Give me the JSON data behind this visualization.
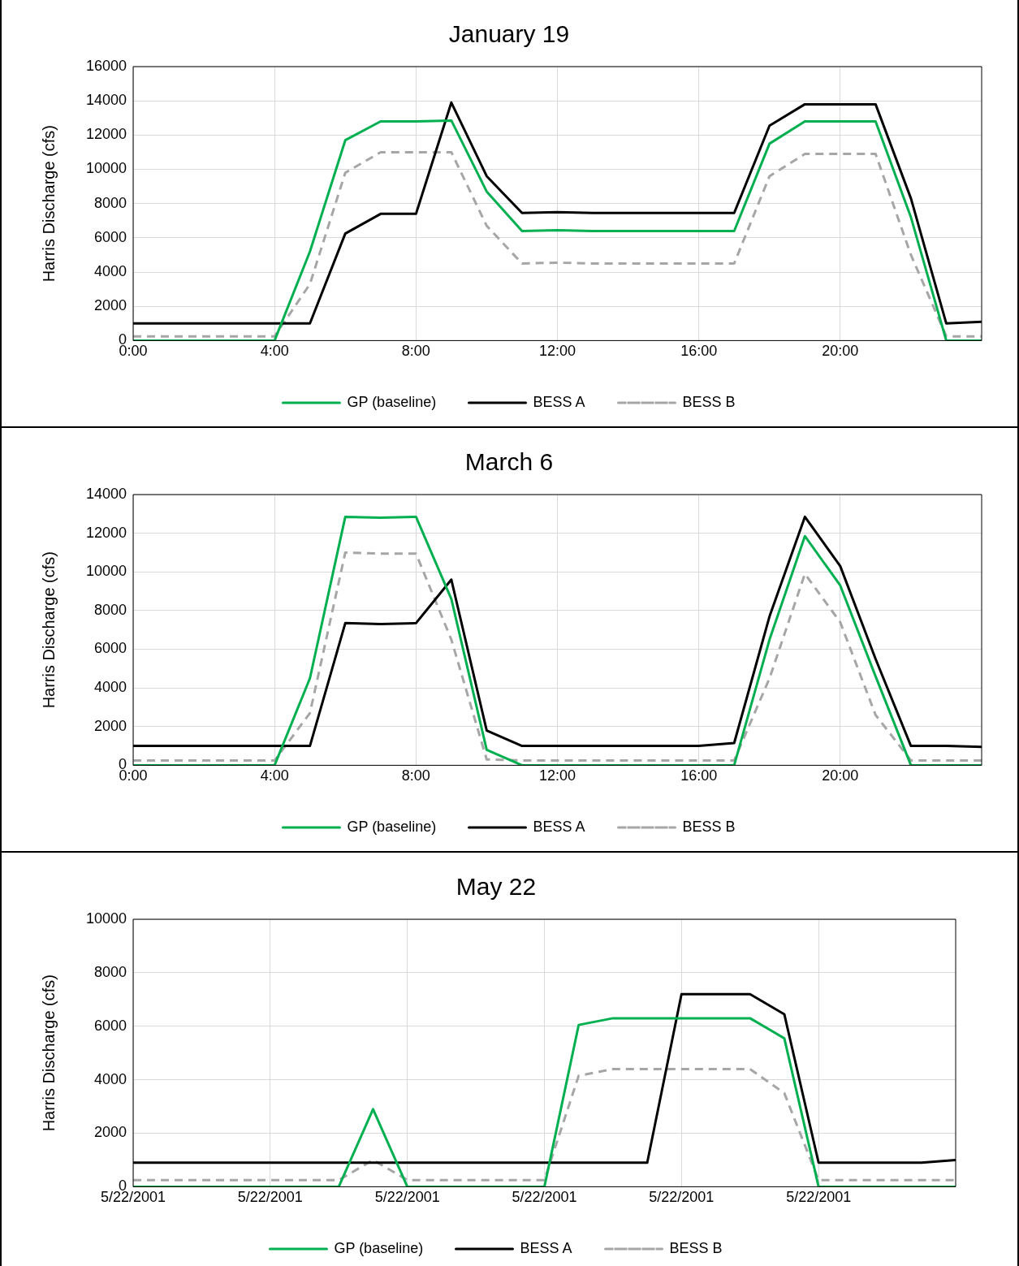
{
  "chart_data": [
    {
      "type": "line",
      "title": "January 19",
      "ylabel": "Harris Discharge (cfs)",
      "x": [
        0,
        1,
        2,
        3,
        4,
        5,
        6,
        7,
        8,
        9,
        10,
        11,
        12,
        13,
        14,
        15,
        16,
        17,
        18,
        19,
        20,
        21,
        22,
        23,
        24
      ],
      "xlim": [
        0,
        24
      ],
      "xticks": [
        {
          "value": 0,
          "label": "0:00"
        },
        {
          "value": 4,
          "label": "4:00"
        },
        {
          "value": 8,
          "label": "8:00"
        },
        {
          "value": 12,
          "label": "12:00"
        },
        {
          "value": 16,
          "label": "16:00"
        },
        {
          "value": 20,
          "label": "20:00"
        }
      ],
      "ylim": [
        0,
        16000
      ],
      "yticks": [
        0,
        2000,
        4000,
        6000,
        8000,
        10000,
        12000,
        14000,
        16000
      ],
      "grid": true,
      "legend": "bottom",
      "marker": "none",
      "series": [
        {
          "name": "GP (baseline)",
          "color": "#00b050",
          "line_style": "solid",
          "values": [
            0,
            0,
            0,
            0,
            0,
            5200,
            11700,
            12800,
            12800,
            12850,
            8700,
            6400,
            6450,
            6400,
            6400,
            6400,
            6400,
            6400,
            11500,
            12800,
            12800,
            12800,
            7200,
            0,
            0
          ]
        },
        {
          "name": "BESS A",
          "color": "#000000",
          "line_style": "solid",
          "values": [
            1000,
            1000,
            1000,
            1000,
            1000,
            1000,
            6250,
            7400,
            7400,
            13900,
            9600,
            7450,
            7500,
            7450,
            7450,
            7450,
            7450,
            7450,
            12550,
            13800,
            13800,
            13800,
            8300,
            1000,
            1100
          ]
        },
        {
          "name": "BESS B",
          "color": "#a6a6a6",
          "line_style": "dashed",
          "values": [
            250,
            250,
            250,
            250,
            250,
            3300,
            9800,
            11000,
            11000,
            11000,
            6700,
            4500,
            4550,
            4500,
            4500,
            4500,
            4500,
            4500,
            9600,
            10900,
            10900,
            10900,
            5000,
            250,
            250
          ]
        }
      ]
    },
    {
      "type": "line",
      "title": "March 6",
      "ylabel": "Harris Discharge (cfs)",
      "x": [
        0,
        1,
        2,
        3,
        4,
        5,
        6,
        7,
        8,
        9,
        10,
        11,
        12,
        13,
        14,
        15,
        16,
        17,
        18,
        19,
        20,
        21,
        22,
        23,
        24
      ],
      "xlim": [
        0,
        24
      ],
      "xticks": [
        {
          "value": 0,
          "label": "0:00"
        },
        {
          "value": 4,
          "label": "4:00"
        },
        {
          "value": 8,
          "label": "8:00"
        },
        {
          "value": 12,
          "label": "12:00"
        },
        {
          "value": 16,
          "label": "16:00"
        },
        {
          "value": 20,
          "label": "20:00"
        }
      ],
      "ylim": [
        0,
        14000
      ],
      "yticks": [
        0,
        2000,
        4000,
        6000,
        8000,
        10000,
        12000,
        14000
      ],
      "grid": true,
      "legend": "bottom",
      "marker": "none",
      "series": [
        {
          "name": "GP (baseline)",
          "color": "#00b050",
          "line_style": "solid",
          "values": [
            0,
            0,
            0,
            0,
            0,
            4500,
            12850,
            12800,
            12850,
            8600,
            800,
            0,
            0,
            0,
            0,
            0,
            0,
            0,
            6500,
            11850,
            9300,
            4600,
            0,
            0,
            0
          ]
        },
        {
          "name": "BESS A",
          "color": "#000000",
          "line_style": "solid",
          "values": [
            1000,
            1000,
            1000,
            1000,
            1000,
            1000,
            7350,
            7300,
            7350,
            9600,
            1800,
            1000,
            1000,
            1000,
            1000,
            1000,
            1000,
            1150,
            7700,
            12850,
            10300,
            5500,
            1000,
            1000,
            950
          ]
        },
        {
          "name": "BESS B",
          "color": "#a6a6a6",
          "line_style": "dashed",
          "values": [
            250,
            250,
            250,
            250,
            250,
            2700,
            11000,
            10950,
            10950,
            6500,
            300,
            250,
            250,
            250,
            250,
            250,
            250,
            250,
            4500,
            9900,
            7400,
            2600,
            250,
            250,
            250
          ]
        }
      ]
    },
    {
      "type": "line",
      "title": "May 22",
      "ylabel": "Harris Discharge (cfs)",
      "x": [
        "2001-05-22T00:00",
        "2001-05-22T01:00",
        "2001-05-22T02:00",
        "2001-05-22T03:00",
        "2001-05-22T04:00",
        "2001-05-22T05:00",
        "2001-05-22T06:00",
        "2001-05-22T07:00",
        "2001-05-22T08:00",
        "2001-05-22T09:00",
        "2001-05-22T10:00",
        "2001-05-22T11:00",
        "2001-05-22T12:00",
        "2001-05-22T13:00",
        "2001-05-22T14:00",
        "2001-05-22T15:00",
        "2001-05-22T16:00",
        "2001-05-22T17:00",
        "2001-05-22T18:00",
        "2001-05-22T19:00",
        "2001-05-22T20:00",
        "2001-05-22T21:00",
        "2001-05-22T22:00",
        "2001-05-22T23:00",
        "2001-05-23T00:00"
      ],
      "xlim": [
        "2001-05-22T00:00",
        "2001-05-23T00:00"
      ],
      "xticks": [
        {
          "value": "2001-05-22T00:00",
          "label": "5/22/2001"
        },
        {
          "value": "2001-05-22T04:00",
          "label": "5/22/2001"
        },
        {
          "value": "2001-05-22T08:00",
          "label": "5/22/2001"
        },
        {
          "value": "2001-05-22T12:00",
          "label": "5/22/2001"
        },
        {
          "value": "2001-05-22T16:00",
          "label": "5/22/2001"
        },
        {
          "value": "2001-05-22T20:00",
          "label": "5/22/2001"
        }
      ],
      "ylim": [
        0,
        10000
      ],
      "yticks": [
        0,
        2000,
        4000,
        6000,
        8000,
        10000
      ],
      "grid": true,
      "legend": "bottom",
      "marker": "none",
      "series": [
        {
          "name": "GP (baseline)",
          "color": "#00b050",
          "line_style": "solid",
          "values": [
            0,
            0,
            0,
            0,
            0,
            0,
            0,
            2900,
            0,
            0,
            0,
            0,
            0,
            6050,
            6300,
            6300,
            6300,
            6300,
            6300,
            5550,
            0,
            0,
            0,
            0,
            0
          ]
        },
        {
          "name": "BESS A",
          "color": "#000000",
          "line_style": "solid",
          "values": [
            900,
            900,
            900,
            900,
            900,
            900,
            900,
            900,
            900,
            900,
            900,
            900,
            900,
            900,
            900,
            900,
            7200,
            7200,
            7200,
            6450,
            900,
            900,
            900,
            900,
            1000
          ]
        },
        {
          "name": "BESS B",
          "color": "#a6a6a6",
          "line_style": "dashed",
          "values": [
            250,
            250,
            250,
            250,
            250,
            250,
            250,
            1000,
            250,
            250,
            250,
            250,
            250,
            4150,
            4400,
            4400,
            4400,
            4400,
            4400,
            3500,
            250,
            250,
            250,
            250,
            250
          ]
        }
      ]
    }
  ]
}
